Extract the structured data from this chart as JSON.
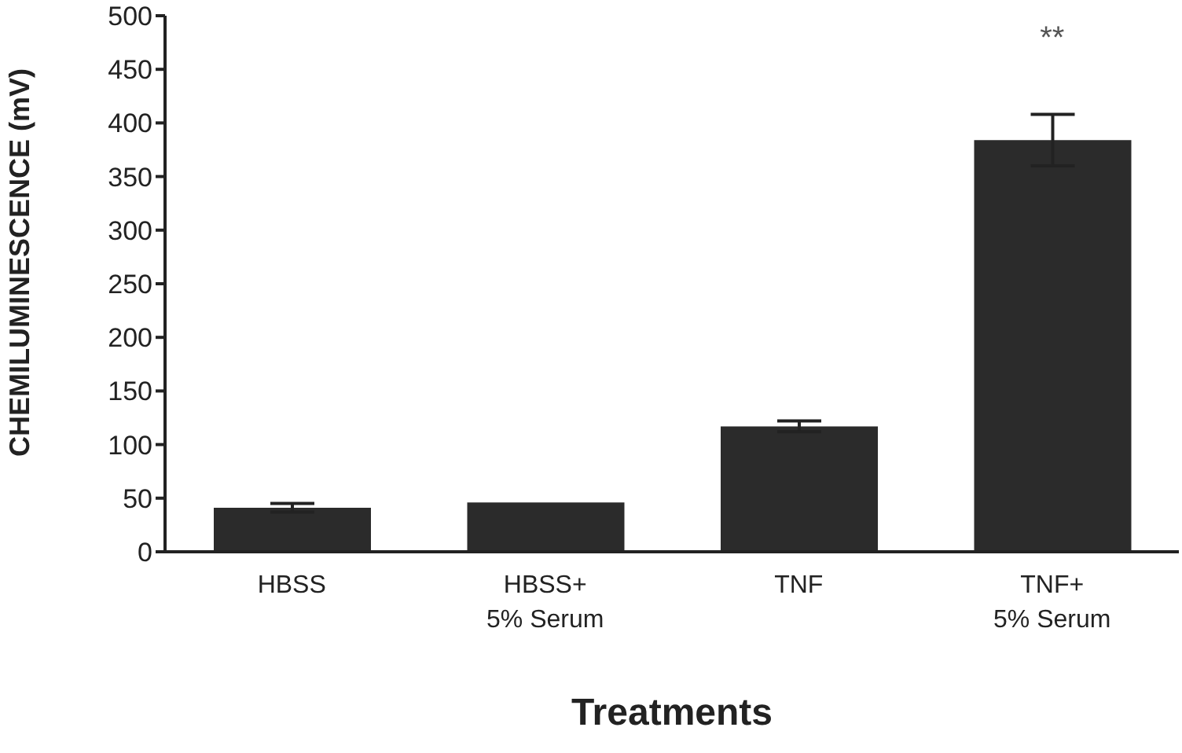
{
  "chart_data": {
    "type": "bar",
    "xlabel": "Treatments",
    "ylabel": "CHEMILUMINESCENCE (mV)",
    "categories": [
      "HBSS",
      "HBSS+\n5% Serum",
      "TNF",
      "TNF+\n5% Serum"
    ],
    "values": [
      41,
      46,
      117,
      384
    ],
    "errors": [
      4,
      null,
      5,
      24
    ],
    "color": "#2b2b2b",
    "ylim": [
      0,
      500
    ],
    "yticks": [
      0,
      50,
      100,
      150,
      200,
      250,
      300,
      350,
      400,
      450,
      500
    ],
    "grid": false,
    "legend": false,
    "annotations": [
      "**"
    ]
  }
}
